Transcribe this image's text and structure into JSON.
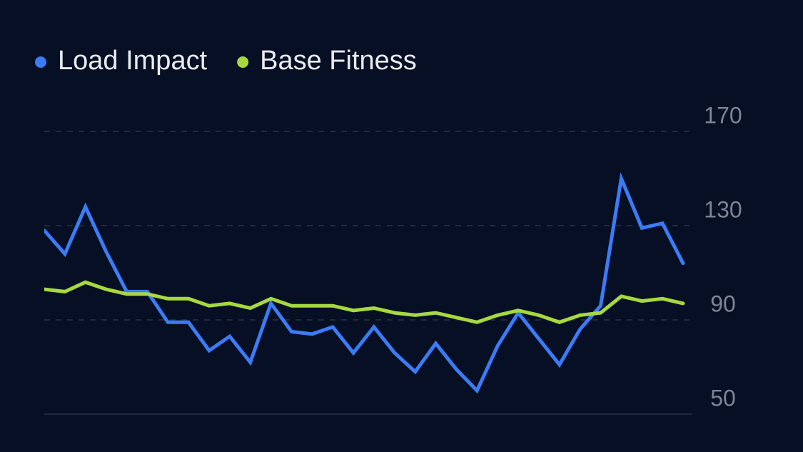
{
  "chart_data": {
    "type": "line",
    "categories": [
      null,
      null,
      null,
      null,
      null,
      null,
      null,
      null,
      null,
      null,
      null,
      null,
      null,
      null,
      null,
      null,
      null,
      null,
      null,
      null,
      null,
      null,
      null,
      null,
      null,
      null,
      null,
      null,
      null,
      null,
      null,
      null
    ],
    "series": [
      {
        "name": "Load Impact",
        "color": "#3b7cf6",
        "values": [
          128,
          118,
          138,
          119,
          102,
          102,
          89,
          89,
          77,
          83,
          72,
          97,
          85,
          84,
          87,
          76,
          87,
          76,
          68,
          80,
          69,
          60,
          79,
          93,
          82,
          71,
          86,
          96,
          150,
          129,
          131,
          114
        ]
      },
      {
        "name": "Base Fitness",
        "color": "#a6d93f",
        "values": [
          103,
          102,
          106,
          103,
          101,
          101,
          99,
          99,
          96,
          97,
          95,
          99,
          96,
          96,
          96,
          94,
          95,
          93,
          92,
          93,
          91,
          89,
          92,
          94,
          92,
          89,
          92,
          93,
          100,
          98,
          99,
          97
        ]
      }
    ],
    "ylim": [
      50,
      170
    ],
    "yticks": [
      50,
      90,
      130,
      170
    ],
    "grid": true,
    "legend": "top-left"
  }
}
